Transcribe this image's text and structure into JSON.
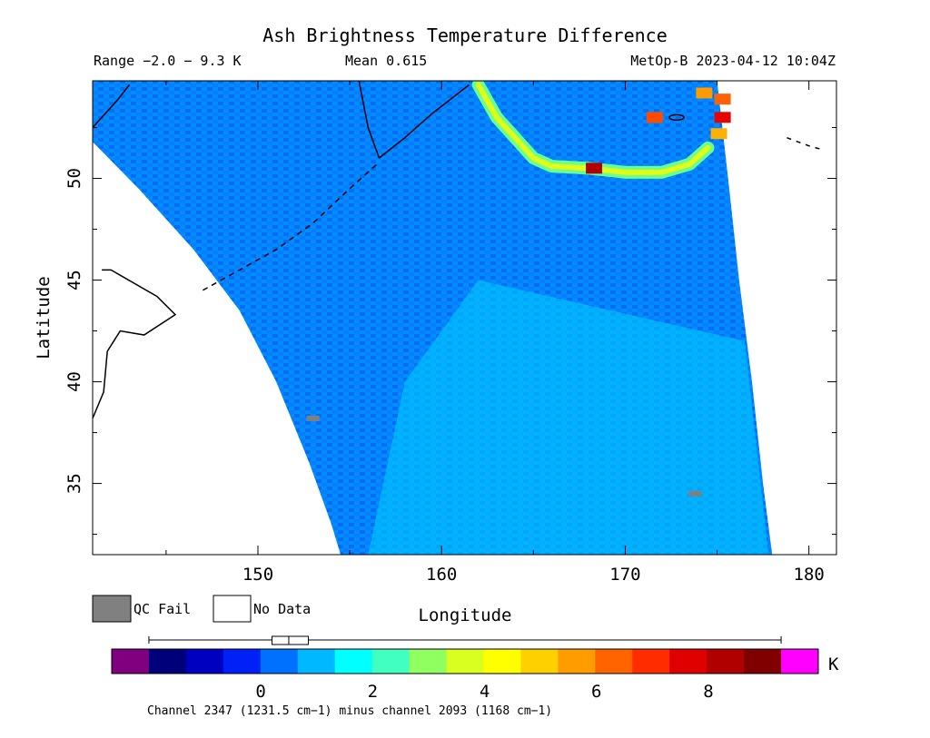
{
  "chart_data": {
    "type": "heatmap",
    "title": "Ash Brightness Temperature Difference",
    "range_text": "Range −2.0 − 9.3 K",
    "mean_text": "Mean 0.615",
    "source_text": "MetOp-B 2023-04-12 10:04Z",
    "xlabel": "Longitude",
    "ylabel": "Latitude",
    "xlim": [
      141,
      181.5
    ],
    "ylim": [
      31.5,
      54.8
    ],
    "xticks": [
      150,
      160,
      170,
      180
    ],
    "yticks": [
      35,
      40,
      45,
      50
    ],
    "xticks_minor": [
      145,
      155,
      165,
      175
    ],
    "yticks_minor": [
      32.5,
      37.5,
      42.5,
      47.5,
      52.5
    ],
    "swath_left_edge": [
      [
        141,
        51.8
      ],
      [
        143.5,
        49.5
      ],
      [
        146.5,
        46.5
      ],
      [
        149,
        43.5
      ],
      [
        151,
        40
      ],
      [
        152.8,
        36
      ],
      [
        154,
        33
      ],
      [
        154.5,
        31.5
      ]
    ],
    "swath_right_edge": [
      [
        175,
        54.8
      ],
      [
        175.6,
        50
      ],
      [
        176.2,
        45
      ],
      [
        176.9,
        40
      ],
      [
        177.5,
        35
      ],
      [
        178,
        31.5
      ]
    ],
    "ash_plume_points": [
      [
        162.0,
        54.6
      ],
      [
        163.0,
        53.0
      ],
      [
        164.0,
        52.0
      ],
      [
        165.0,
        51.0
      ],
      [
        166.0,
        50.6
      ],
      [
        168.0,
        50.5
      ],
      [
        170.0,
        50.3
      ],
      [
        172.0,
        50.3
      ],
      [
        173.5,
        50.7
      ],
      [
        174.5,
        51.5
      ]
    ],
    "hot_spot_points": [
      [
        174.3,
        54.2
      ],
      [
        175.3,
        53.9
      ],
      [
        175.3,
        53.0
      ],
      [
        171.6,
        53.0
      ],
      [
        175.1,
        52.2
      ],
      [
        168.3,
        50.5
      ]
    ],
    "qc_fail_points": [
      [
        153.0,
        38.2
      ],
      [
        173.8,
        34.5
      ]
    ],
    "legend": {
      "qc_fail_label": "QC Fail",
      "no_data_label": "No Data"
    },
    "colorbar": {
      "min": -2.0,
      "max": 9.3,
      "unit": "K",
      "tick_values": [
        0,
        2,
        4,
        6,
        8
      ],
      "tick_labels": [
        "0",
        "2",
        "4",
        "6",
        "8"
      ],
      "colors": [
        "#800080",
        "#00007a",
        "#0000c0",
        "#0020f8",
        "#0070ff",
        "#00b8ff",
        "#00ffff",
        "#40ffc0",
        "#90ff60",
        "#d8ff20",
        "#ffff00",
        "#ffd000",
        "#ff9c00",
        "#ff6400",
        "#ff2c00",
        "#e00000",
        "#b00000",
        "#800000",
        "#ff00ff"
      ],
      "boxplot": {
        "whisker_low": -2.0,
        "q1": 0.2,
        "median": 0.5,
        "q3": 0.85,
        "whisker_high": 9.3
      }
    },
    "footnote": "Channel 2347 (1231.5 cm−1) minus channel 2093 (1168 cm−1)"
  }
}
